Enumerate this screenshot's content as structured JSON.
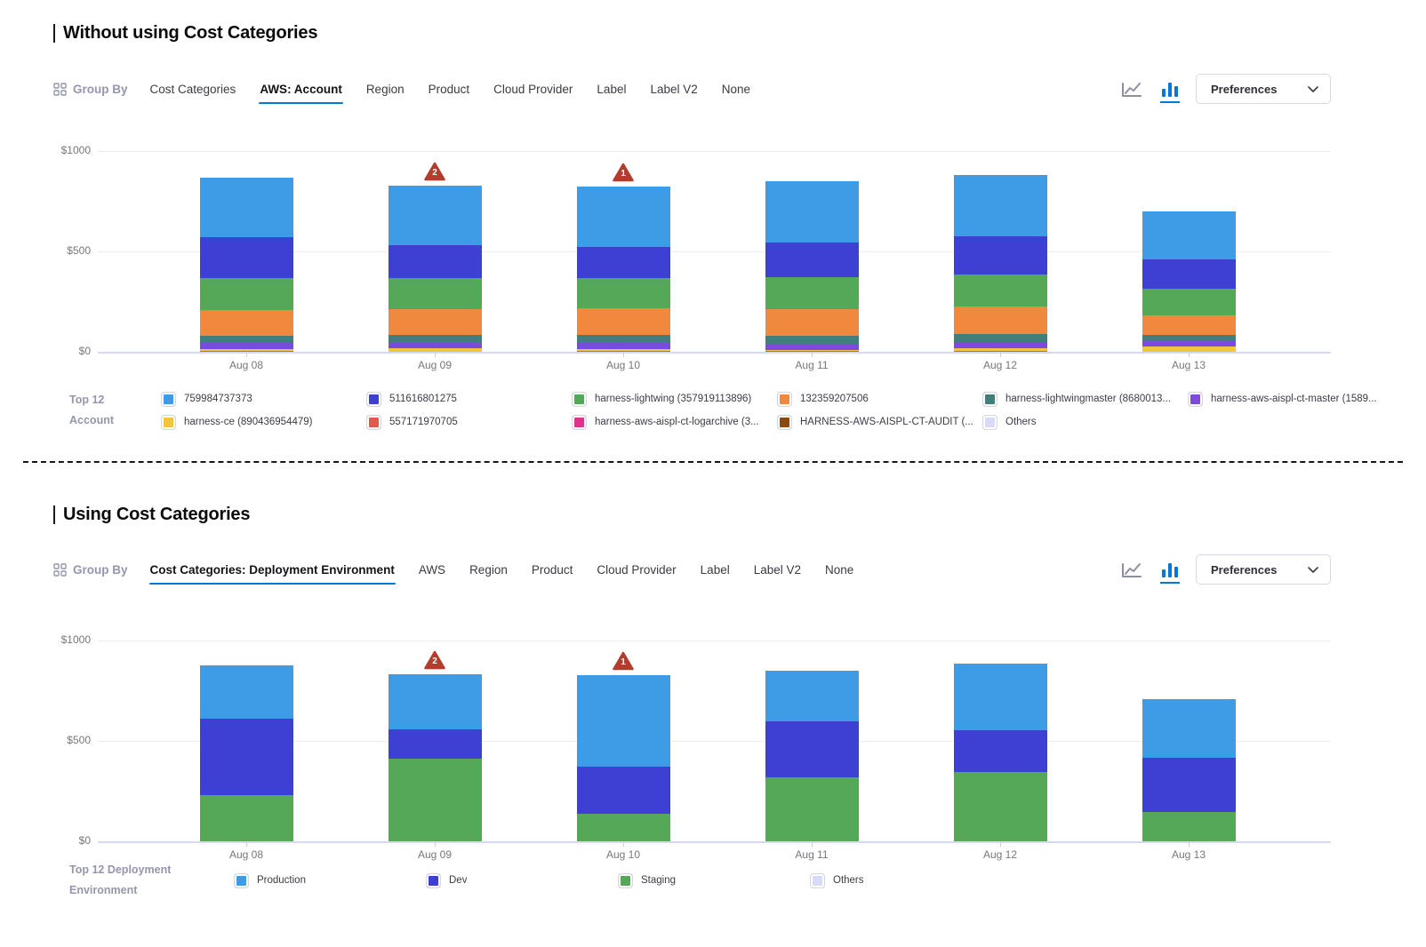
{
  "divider": {
    "style": "dashed"
  },
  "accent_color": "#0278D5",
  "anomaly_color": "#B23C2D",
  "sections": [
    {
      "title": "Without using Cost Categories",
      "toolbar": {
        "group_by_label": "Group By",
        "tabs": [
          "Cost Categories",
          "AWS: Account",
          "Region",
          "Product",
          "Cloud Provider",
          "Label",
          "Label V2",
          "None"
        ],
        "active_tab": "AWS: Account",
        "chart_type_toggle": {
          "options": [
            "line-chart-icon",
            "bar-chart-icon"
          ],
          "active": "bar-chart-icon"
        },
        "preferences_label": "Preferences"
      },
      "chart_data": {
        "type": "bar",
        "stacking": "stacked",
        "stack_order": "first-series-on-top",
        "title": "",
        "xlabel": "",
        "ylabel": "",
        "ylim": [
          0,
          1000
        ],
        "yticks": [
          "$0",
          "$500",
          "$1000"
        ],
        "grid": true,
        "legend_position": "bottom",
        "categories": [
          "Aug 08",
          "Aug 09",
          "Aug 10",
          "Aug 11",
          "Aug 12",
          "Aug 13"
        ],
        "series": [
          {
            "name": "759984737373",
            "color": "#3E9BE5",
            "values": [
              298,
              299,
              297,
              307,
              306,
              241
            ]
          },
          {
            "name": "511616801275",
            "color": "#3E40D4",
            "values": [
              202,
              161,
              155,
              172,
              190,
              146
            ]
          },
          {
            "name": "harness-lightwing (357919113896)",
            "color": "#54A857",
            "values": [
              159,
              155,
              152,
              160,
              160,
              129
            ]
          },
          {
            "name": "132359207506",
            "color": "#F0893E",
            "values": [
              129,
              131,
              134,
              132,
              135,
              97
            ]
          },
          {
            "name": "harness-lightwingmaster (8680013...",
            "color": "#41807A",
            "values": [
              38,
              40,
              37,
              43,
              40,
              31
            ]
          },
          {
            "name": "harness-aws-aispl-ct-master (1589...",
            "color": "#7C4BD9",
            "values": [
              29,
              25,
              32,
              26,
              32,
              29
            ]
          },
          {
            "name": "harness-ce (890436954479)",
            "color": "#F2C440",
            "values": [
              9,
              18,
              9,
              7,
              12,
              26
            ]
          },
          {
            "name": "557171970705",
            "color": "#E2594E",
            "values": [
              5,
              0,
              5,
              3,
              5,
              0
            ]
          },
          {
            "name": "harness-aws-aispl-ct-logarchive (3...",
            "color": "#E0348C",
            "values": [
              0,
              0,
              0,
              0,
              0,
              0
            ]
          },
          {
            "name": "HARNESS-AWS-AISPL-CT-AUDIT (...",
            "color": "#8A4A10",
            "values": [
              0,
              0,
              0,
              0,
              0,
              0
            ]
          },
          {
            "name": "Others",
            "color": "#D9D9F8",
            "values": [
              0,
              0,
              0,
              0,
              0,
              0
            ]
          }
        ],
        "anomalies": [
          {
            "category": "Aug 09",
            "count": "2"
          },
          {
            "category": "Aug 10",
            "count": "1"
          }
        ]
      },
      "legend": {
        "label_lines": [
          "Top 12",
          "Account"
        ],
        "rows": [
          [
            0,
            1,
            2,
            3,
            4,
            5
          ],
          [
            6,
            7,
            8,
            9,
            10
          ]
        ]
      }
    },
    {
      "title": "Using Cost Categories",
      "toolbar": {
        "group_by_label": "Group By",
        "tabs": [
          "Cost Categories: Deployment Environment",
          "AWS",
          "Region",
          "Product",
          "Cloud Provider",
          "Label",
          "Label V2",
          "None"
        ],
        "active_tab": "Cost Categories: Deployment Environment",
        "chart_type_toggle": {
          "options": [
            "line-chart-icon",
            "bar-chart-icon"
          ],
          "active": "bar-chart-icon"
        },
        "preferences_label": "Preferences"
      },
      "chart_data": {
        "type": "bar",
        "stacking": "stacked",
        "stack_order": "first-series-on-top",
        "title": "",
        "xlabel": "",
        "ylabel": "",
        "ylim": [
          0,
          1000
        ],
        "yticks": [
          "$0",
          "$500",
          "$1000"
        ],
        "grid": true,
        "legend_position": "bottom",
        "categories": [
          "Aug 08",
          "Aug 09",
          "Aug 10",
          "Aug 11",
          "Aug 12",
          "Aug 13"
        ],
        "series": [
          {
            "name": "Production",
            "color": "#3E9BE5",
            "values": [
              265,
              274,
              456,
              250,
              332,
              289
            ]
          },
          {
            "name": "Dev",
            "color": "#3E40D4",
            "values": [
              379,
              144,
              235,
              280,
              207,
              271
            ]
          },
          {
            "name": "Staging",
            "color": "#54A857",
            "values": [
              230,
              413,
              135,
              319,
              345,
              147
            ]
          },
          {
            "name": "Others",
            "color": "#D9D9F8",
            "values": [
              0,
              0,
              0,
              0,
              0,
              0
            ]
          }
        ],
        "anomalies": [
          {
            "category": "Aug 09",
            "count": "2"
          },
          {
            "category": "Aug 10",
            "count": "1"
          }
        ]
      },
      "legend": {
        "label_lines": [
          "Top 12 Deployment",
          "Environment"
        ],
        "rows": [
          [
            0,
            1,
            2,
            3
          ]
        ]
      }
    }
  ]
}
